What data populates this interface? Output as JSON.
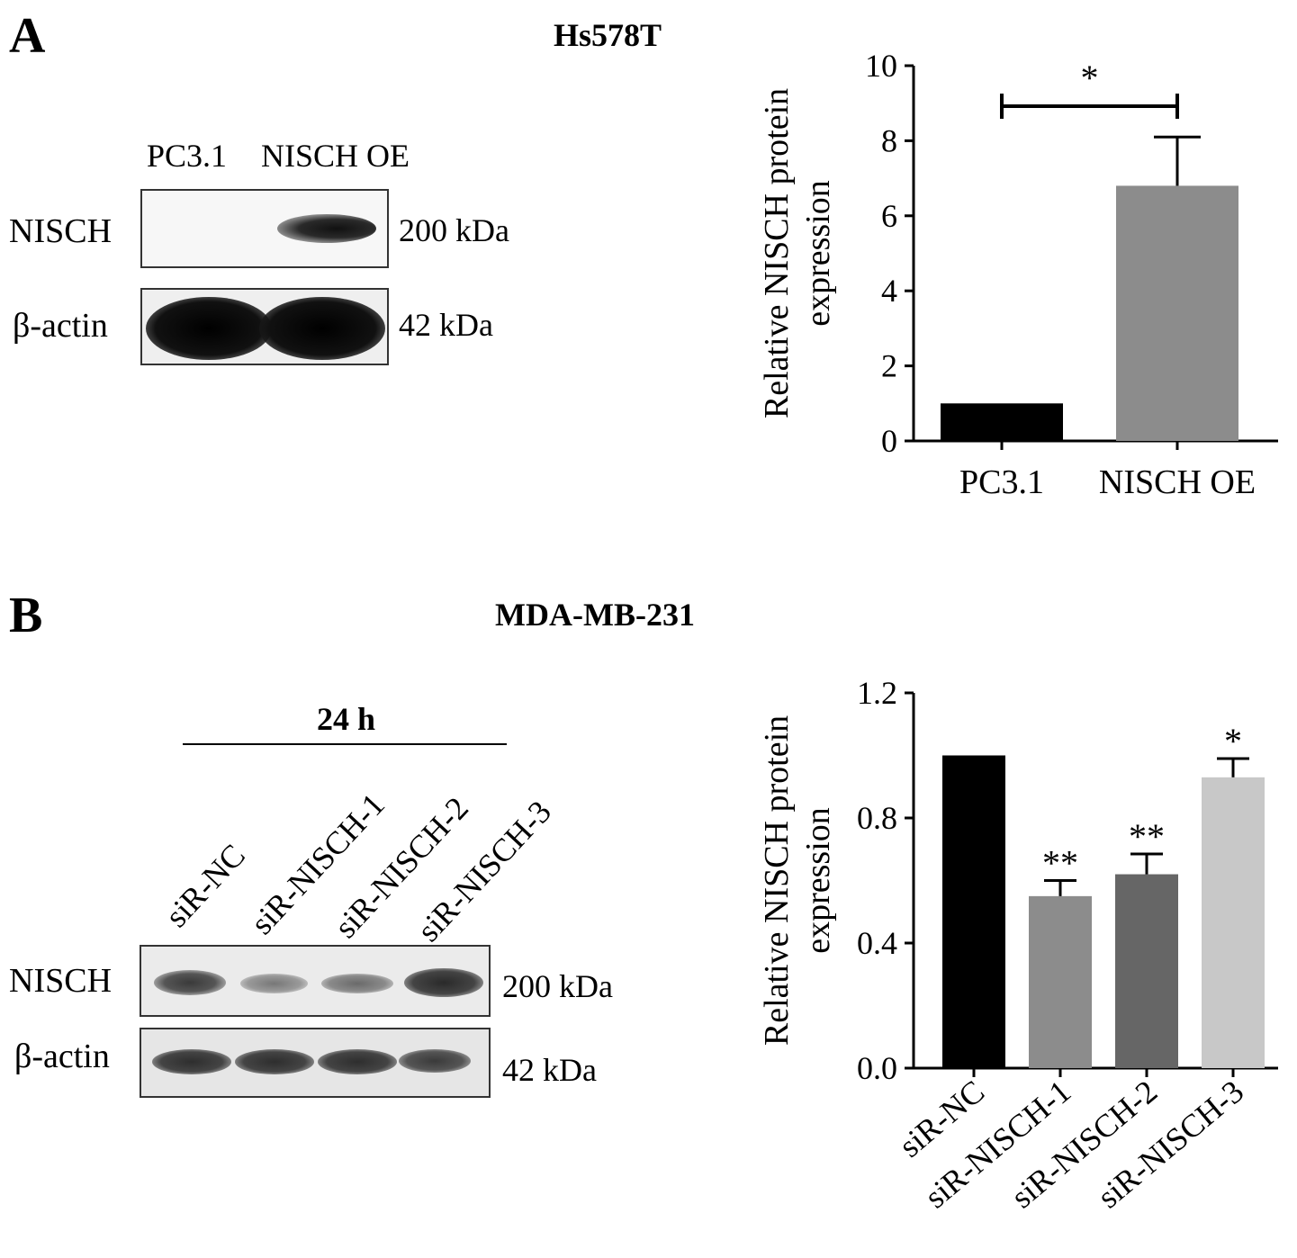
{
  "panel_a": {
    "letter": "A",
    "cell_line": "Hs578T",
    "lanes": [
      "PC3.1",
      "NISCH OE"
    ],
    "rows": [
      {
        "label": "NISCH",
        "kda": "200 kDa"
      },
      {
        "label": "β-actin",
        "kda": "42 kDa"
      }
    ]
  },
  "panel_b": {
    "letter": "B",
    "cell_line": "MDA-MB-231",
    "time": "24 h",
    "lanes": [
      "siR-NC",
      "siR-NISCH-1",
      "siR-NISCH-2",
      "siR-NISCH-3"
    ],
    "rows": [
      {
        "label": "NISCH",
        "kda": "200 kDa"
      },
      {
        "label": "β-actin",
        "kda": "42 kDa"
      }
    ]
  },
  "chart_data": [
    {
      "type": "bar",
      "categories": [
        "PC3.1",
        "NISCH OE"
      ],
      "values": [
        1.0,
        6.8
      ],
      "errors": [
        0,
        1.3
      ],
      "colors": [
        "#000000",
        "#8c8c8c"
      ],
      "ylabel": "Relative NISCH protein expression",
      "ylabel_lines": [
        "Relative NISCH protein",
        "expression"
      ],
      "ylim": [
        0,
        10
      ],
      "yticks": [
        "0",
        "2",
        "4",
        "6",
        "8",
        "10"
      ],
      "significance": [
        {
          "from": "PC3.1",
          "to": "NISCH OE",
          "label": "*"
        }
      ]
    },
    {
      "type": "bar",
      "categories": [
        "siR-NC",
        "siR-NISCH-1",
        "siR-NISCH-2",
        "siR-NISCH-3"
      ],
      "values": [
        1.0,
        0.55,
        0.62,
        0.93
      ],
      "errors": [
        0,
        0.05,
        0.065,
        0.06
      ],
      "colors": [
        "#000000",
        "#8c8c8c",
        "#666666",
        "#c8c8c8"
      ],
      "annotations": [
        "",
        "**",
        "**",
        "*"
      ],
      "ylabel": "Relative NISCH protein expression",
      "ylabel_lines": [
        "Relative NISCH protein",
        "expression"
      ],
      "ylim": [
        0,
        1.2
      ],
      "yticks": [
        "0.0",
        "0.4",
        "0.8",
        "1.2"
      ]
    }
  ]
}
